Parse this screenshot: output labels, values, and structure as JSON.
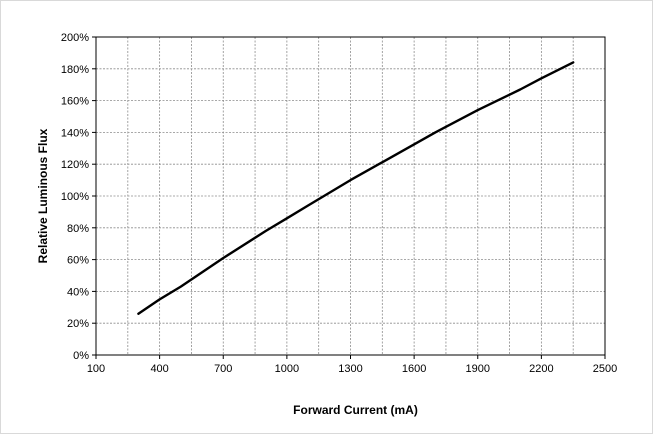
{
  "chart_data": {
    "type": "line",
    "title": "",
    "xlabel": "Forward Current (mA)",
    "ylabel": "Relative Luminous Flux",
    "xlim": [
      100,
      2500
    ],
    "ylim": [
      0,
      200
    ],
    "x_ticks": [
      100,
      400,
      700,
      1000,
      1300,
      1600,
      1900,
      2200,
      2500
    ],
    "x_tick_labels": [
      "100",
      "400",
      "700",
      "1000",
      "1300",
      "1600",
      "1900",
      "2200",
      "2500"
    ],
    "y_ticks": [
      0,
      20,
      40,
      60,
      80,
      100,
      120,
      140,
      160,
      180,
      200
    ],
    "y_tick_labels": [
      "0%",
      "20%",
      "40%",
      "60%",
      "80%",
      "100%",
      "120%",
      "140%",
      "160%",
      "180%",
      "200%"
    ],
    "x_minor_gridlines": [
      250,
      550,
      850,
      1150,
      1450,
      1750,
      2050,
      2350
    ],
    "grid": true,
    "legend": "none",
    "series": [
      {
        "color": "#000000",
        "x": [
          300,
          400,
          500,
          700,
          900,
          1000,
          1100,
          1300,
          1500,
          1700,
          1900,
          2100,
          2200,
          2350
        ],
        "y": [
          26,
          35,
          43,
          61,
          78,
          86,
          94,
          110,
          125,
          140,
          154,
          167,
          174,
          184
        ]
      }
    ]
  }
}
